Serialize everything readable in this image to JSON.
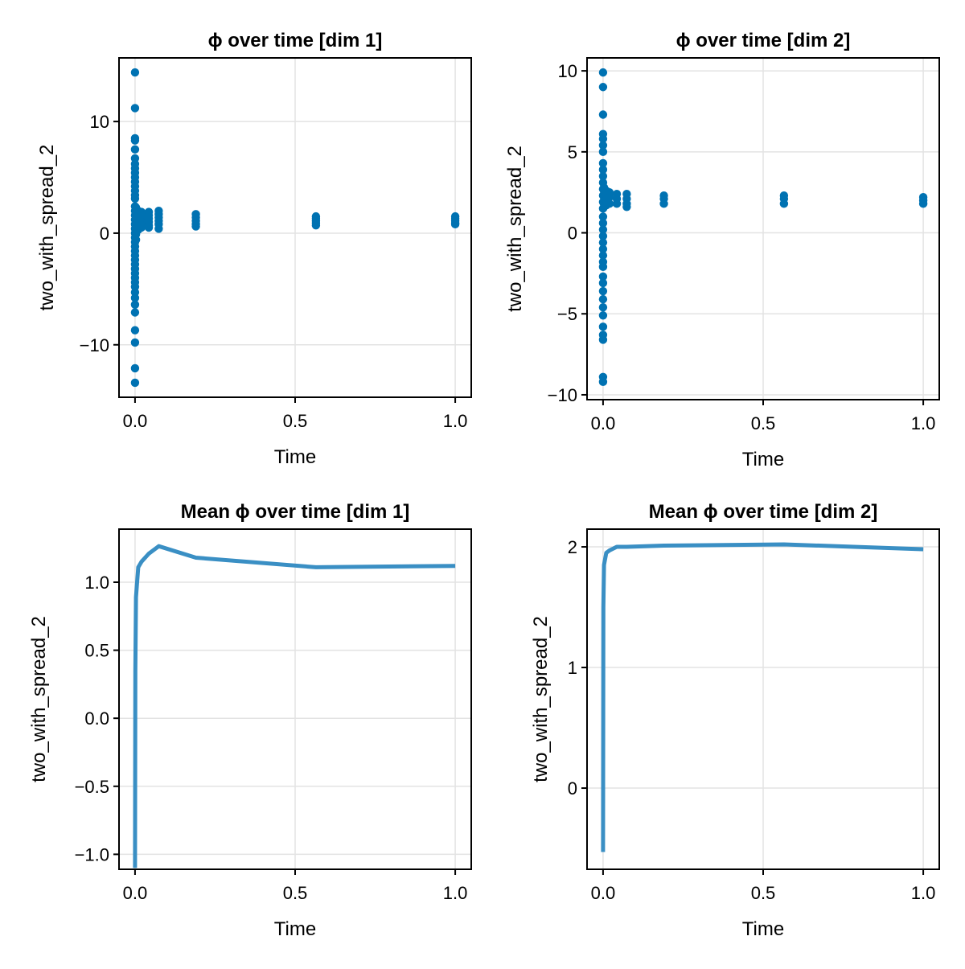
{
  "chart_data": [
    {
      "type": "scatter",
      "title": "ϕ over time [dim 1]",
      "xlabel": "Time",
      "ylabel": "two_with_spread_2",
      "xlim": [
        -0.05,
        1.05
      ],
      "ylim": [
        -14.7,
        15.7
      ],
      "xticks": [
        0.0,
        0.5,
        1.0
      ],
      "xtick_labels": [
        "0.0",
        "0.5",
        "1.0"
      ],
      "yticks": [
        -10,
        0,
        10
      ],
      "ytick_labels": [
        "−10",
        "0",
        "10"
      ],
      "grid": true,
      "color": "#0072b2",
      "points": [
        {
          "x": 0.0,
          "y": [
            14.4,
            11.2,
            8.5,
            8.3,
            7.5,
            6.7,
            6.2,
            5.8,
            5.4,
            5.0,
            4.6,
            4.2,
            3.8,
            3.4,
            3.1,
            2.4,
            2.0,
            1.6,
            1.2,
            0.8,
            0.4,
            0.0,
            -0.4,
            -0.8,
            -1.2,
            -1.6,
            -2.0,
            -2.4,
            -2.8,
            -3.2,
            -3.6,
            -4.0,
            -4.4,
            -4.8,
            -5.3,
            -5.8,
            -6.4,
            -7.1,
            -8.7,
            -9.8,
            -12.1,
            -13.4
          ]
        },
        {
          "x": 0.003,
          "y": [
            2.3,
            1.9,
            1.5,
            1.1,
            0.7,
            0.3,
            -0.1,
            -0.6
          ]
        },
        {
          "x": 0.01,
          "y": [
            2.0,
            1.7,
            1.4,
            1.1,
            0.8,
            0.5,
            0.3
          ]
        },
        {
          "x": 0.02,
          "y": [
            1.9,
            1.6,
            1.3,
            1.0,
            0.7,
            0.5
          ]
        },
        {
          "x": 0.043,
          "y": [
            1.9,
            1.6,
            1.3,
            1.0,
            0.7,
            0.5
          ]
        },
        {
          "x": 0.074,
          "y": [
            2.0,
            1.7,
            1.4,
            1.1,
            0.8,
            0.4
          ]
        },
        {
          "x": 0.19,
          "y": [
            1.7,
            1.4,
            1.1,
            0.8,
            0.6
          ]
        },
        {
          "x": 0.565,
          "y": [
            1.5,
            1.3,
            1.1,
            0.9,
            0.7
          ]
        },
        {
          "x": 1.0,
          "y": [
            1.5,
            1.3,
            1.1,
            0.9,
            0.8
          ]
        }
      ]
    },
    {
      "type": "scatter",
      "title": "ϕ over time [dim 2]",
      "xlabel": "Time",
      "ylabel": "two_with_spread_2",
      "xlim": [
        -0.05,
        1.05
      ],
      "ylim": [
        -10.3,
        10.8
      ],
      "xticks": [
        0.0,
        0.5,
        1.0
      ],
      "xtick_labels": [
        "0.0",
        "0.5",
        "1.0"
      ],
      "yticks": [
        -10,
        -5,
        0,
        5,
        10
      ],
      "ytick_labels": [
        "−10",
        "−5",
        "0",
        "5",
        "10"
      ],
      "grid": true,
      "color": "#0072b2",
      "points": [
        {
          "x": 0.0,
          "y": [
            9.9,
            9.0,
            7.3,
            6.1,
            5.8,
            5.4,
            5.0,
            4.3,
            3.9,
            3.5,
            3.1,
            2.7,
            2.3,
            1.9,
            1.5,
            1.0,
            0.6,
            0.2,
            -0.2,
            -0.6,
            -1.0,
            -1.4,
            -1.8,
            -2.1,
            -2.7,
            -3.1,
            -3.6,
            -4.1,
            -4.6,
            -5.1,
            -5.8,
            -6.3,
            -6.6,
            -8.9,
            -9.2
          ]
        },
        {
          "x": 0.003,
          "y": [
            2.8,
            2.4,
            2.0,
            1.6
          ]
        },
        {
          "x": 0.01,
          "y": [
            2.6,
            2.3,
            2.0,
            1.7
          ]
        },
        {
          "x": 0.02,
          "y": [
            2.5,
            2.2,
            1.8
          ]
        },
        {
          "x": 0.043,
          "y": [
            2.4,
            2.1,
            1.8
          ]
        },
        {
          "x": 0.074,
          "y": [
            2.4,
            2.1,
            1.8,
            1.6
          ]
        },
        {
          "x": 0.19,
          "y": [
            2.3,
            2.1,
            1.8
          ]
        },
        {
          "x": 0.565,
          "y": [
            2.3,
            2.1,
            1.8
          ]
        },
        {
          "x": 1.0,
          "y": [
            2.2,
            2.0,
            1.8
          ]
        }
      ]
    },
    {
      "type": "line",
      "title": "Mean ϕ over time [dim 1]",
      "xlabel": "Time",
      "ylabel": "two_with_spread_2",
      "xlim": [
        -0.05,
        1.05
      ],
      "ylim": [
        -1.11,
        1.39
      ],
      "xticks": [
        0.0,
        0.5,
        1.0
      ],
      "xtick_labels": [
        "0.0",
        "0.5",
        "1.0"
      ],
      "yticks": [
        -1.0,
        -0.5,
        0.0,
        0.5,
        1.0
      ],
      "ytick_labels": [
        "−1.0",
        "−0.5",
        "0.0",
        "0.5",
        "1.0"
      ],
      "grid": true,
      "color": "#3a8fc4",
      "x": [
        0.0,
        0.001,
        0.003,
        0.01,
        0.02,
        0.043,
        0.074,
        0.19,
        0.565,
        1.0
      ],
      "y": [
        -1.1,
        0.35,
        0.89,
        1.11,
        1.15,
        1.21,
        1.265,
        1.18,
        1.11,
        1.12
      ]
    },
    {
      "type": "line",
      "title": "Mean ϕ over time [dim 2]",
      "xlabel": "Time",
      "ylabel": "two_with_spread_2",
      "xlim": [
        -0.05,
        1.05
      ],
      "ylim": [
        -0.673,
        2.147
      ],
      "xticks": [
        0.0,
        0.5,
        1.0
      ],
      "xtick_labels": [
        "0.0",
        "0.5",
        "1.0"
      ],
      "yticks": [
        0,
        1,
        2
      ],
      "ytick_labels": [
        "0",
        "1",
        "2"
      ],
      "grid": true,
      "color": "#3a8fc4",
      "x": [
        0.0,
        0.001,
        0.003,
        0.01,
        0.02,
        0.043,
        0.074,
        0.19,
        0.565,
        1.0
      ],
      "y": [
        -0.53,
        1.5,
        1.85,
        1.95,
        1.97,
        2.0,
        2.0,
        2.01,
        2.02,
        1.98
      ]
    }
  ]
}
